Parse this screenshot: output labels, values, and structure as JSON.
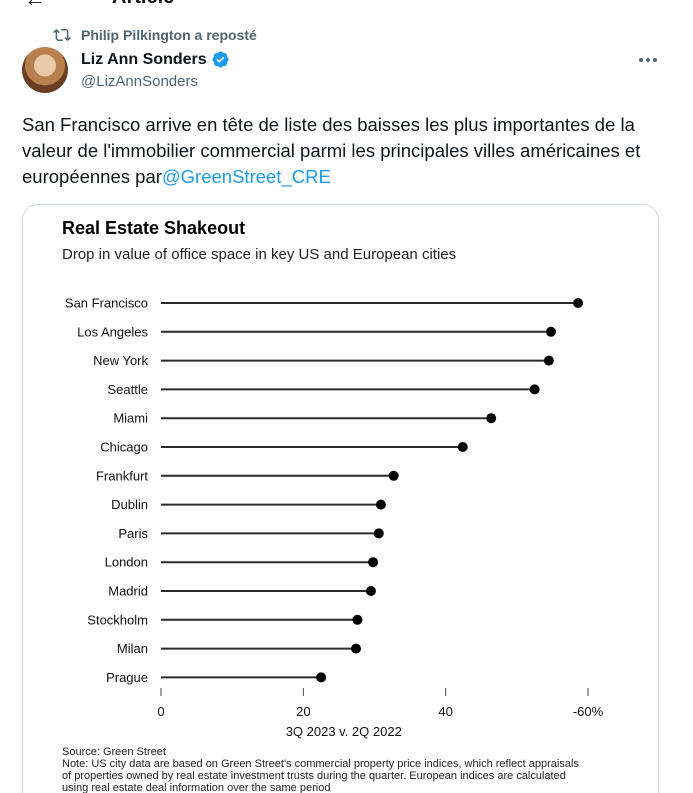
{
  "header": {
    "back_glyph": "←",
    "title": "Article"
  },
  "repost": {
    "icon": "repost-icon",
    "text": "Philip Pilkington a reposté"
  },
  "author": {
    "name": "Liz Ann Sonders",
    "handle": "@LizAnnSonders",
    "verified_color": "#1d9bf0"
  },
  "tweet": {
    "text": "San Francisco arrive en tête de liste des baisses les plus importantes de la valeur de l'immobilier commercial parmi les principales villes américaines et européennes par",
    "mention": "@GreenStreet_CRE"
  },
  "chart": {
    "title": "Real Estate Shakeout",
    "subtitle": "Drop in value of office space in key US and European cities",
    "source_lines": [
      "Source: Green Street",
      "Note: US city data are based on Green Street's commercial property price indices, which reflect appraisals",
      "of properties owned by real estate investment trusts during the quarter. European indices are calculated",
      "using real estate deal information over the same period"
    ]
  },
  "chart_data": {
    "type": "lollipop",
    "title": "Real Estate Shakeout",
    "subtitle": "Drop in value of office space in key US and European cities",
    "xlabel": "3Q 2023 v. 2Q 2022",
    "xlim": [
      0,
      60
    ],
    "xticks": [
      {
        "value": 0,
        "label": "0"
      },
      {
        "value": 20,
        "label": "20"
      },
      {
        "value": 40,
        "label": "40"
      },
      {
        "value": 60,
        "label": "-60%"
      }
    ],
    "categories": [
      "San Francisco",
      "Los Angeles",
      "New York",
      "Seattle",
      "Miami",
      "Chicago",
      "Frankfurt",
      "Dublin",
      "Paris",
      "London",
      "Madrid",
      "Stockholm",
      "Milan",
      "Prague"
    ],
    "values": [
      58.6,
      54.8,
      54.5,
      52.5,
      46.4,
      42.4,
      32.7,
      30.9,
      30.6,
      29.8,
      29.5,
      27.6,
      27.4,
      22.5
    ],
    "colors": {
      "line": "#2b2b2b",
      "dot": "#000000",
      "tick": "#444444"
    }
  }
}
